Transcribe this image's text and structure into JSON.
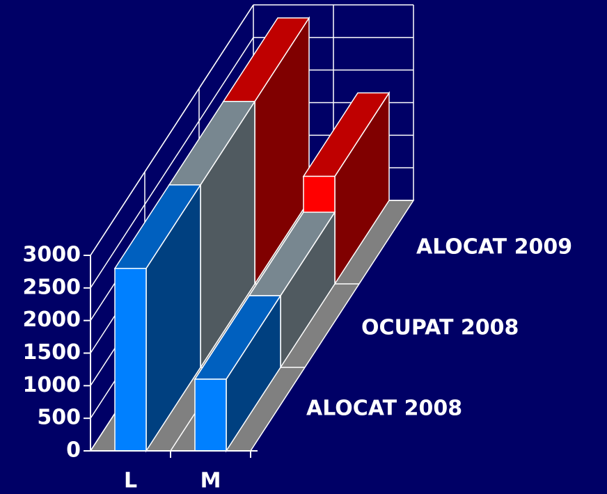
{
  "chart_data": {
    "type": "bar3d",
    "categories": [
      "L",
      "M"
    ],
    "series": [
      {
        "name": "ALOCAT 2008",
        "color": "#0080ff",
        "values": [
          2800,
          1100
        ]
      },
      {
        "name": "OCUPAT 2008",
        "color": "#a0b4c0",
        "values": [
          2800,
          1100
        ]
      },
      {
        "name": "ALOCAT 2009",
        "color": "#ff0000",
        "values": [
          2800,
          1650
        ]
      }
    ],
    "ylim": [
      0,
      3000
    ],
    "yticks": [
      0,
      500,
      1000,
      1500,
      2000,
      2500,
      3000
    ],
    "grid": true
  }
}
